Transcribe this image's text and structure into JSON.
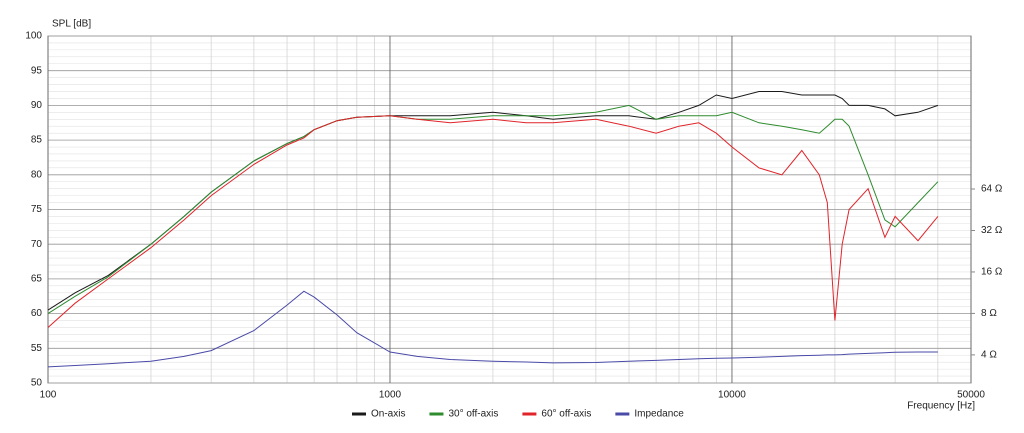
{
  "chart_data": {
    "type": "line",
    "y_label": "SPL [dB]",
    "x_label": "Frequency [Hz]",
    "x": [
      100,
      120,
      150,
      200,
      250,
      300,
      400,
      500,
      560,
      600,
      700,
      800,
      1000,
      1200,
      1500,
      2000,
      2500,
      3000,
      4000,
      5000,
      6000,
      7000,
      8000,
      9000,
      10000,
      12000,
      14000,
      16000,
      18000,
      19000,
      20000,
      21000,
      22000,
      25000,
      28000,
      30000,
      35000,
      40000
    ],
    "xlim": [
      100,
      50000
    ],
    "xlog": true,
    "xticks": [
      100,
      1000,
      10000,
      50000
    ],
    "ylim": [
      50,
      100
    ],
    "yticks": [
      50,
      55,
      60,
      65,
      70,
      75,
      80,
      85,
      90,
      95,
      100
    ],
    "y2lim": [
      2.5,
      826
    ],
    "y2log": true,
    "y2ticks": [
      {
        "value": 4,
        "label": "4 Ω"
      },
      {
        "value": 8,
        "label": "8 Ω"
      },
      {
        "value": 16,
        "label": "16 Ω"
      },
      {
        "value": 32,
        "label": "32 Ω"
      },
      {
        "value": 64,
        "label": "64 Ω"
      }
    ],
    "grid": true,
    "legend": "bottom",
    "series": [
      {
        "name": "On-axis",
        "color": "#1a1a1a",
        "values": [
          60.5,
          63,
          65.5,
          70,
          74,
          77.5,
          82,
          84.5,
          85.5,
          86.5,
          87.8,
          88.3,
          88.5,
          88.5,
          88.5,
          89,
          88.5,
          88,
          88.5,
          88.5,
          88,
          89,
          90,
          91.5,
          91,
          92,
          92,
          91.5,
          91.5,
          91.5,
          91.5,
          91,
          90,
          90,
          89.5,
          88.5,
          89,
          90
        ]
      },
      {
        "name": "30° off-axis",
        "color": "#2e8b2e",
        "values": [
          60,
          62.5,
          65.3,
          70,
          74,
          77.5,
          82,
          84.5,
          85.5,
          86.5,
          87.8,
          88.3,
          88.5,
          88,
          88,
          88.5,
          88.5,
          88.5,
          89,
          90,
          88,
          88.5,
          88.5,
          88.5,
          89,
          87.5,
          87,
          86.5,
          86,
          87,
          88,
          88,
          87,
          80,
          73.5,
          72.5,
          76,
          79
        ]
      },
      {
        "name": "60° off-axis",
        "color": "#e0242a",
        "values": [
          58,
          61.5,
          65,
          69.5,
          73.5,
          77,
          81.5,
          84.3,
          85.3,
          86.5,
          87.8,
          88.3,
          88.5,
          88,
          87.5,
          88,
          87.5,
          87.5,
          88,
          87,
          86,
          87,
          87.5,
          86,
          84,
          81,
          80,
          83.5,
          80,
          76,
          59,
          70,
          75,
          78,
          71,
          74,
          70.5,
          74
        ]
      },
      {
        "name": "Impedance",
        "color": "#4a4aa8",
        "axis": "y2",
        "values": [
          3.27,
          3.35,
          3.45,
          3.6,
          3.9,
          4.3,
          6.0,
          9.2,
          11.6,
          10.5,
          7.8,
          5.8,
          4.2,
          3.9,
          3.7,
          3.6,
          3.55,
          3.5,
          3.52,
          3.6,
          3.65,
          3.7,
          3.75,
          3.78,
          3.8,
          3.85,
          3.9,
          3.95,
          3.98,
          4.0,
          4.0,
          4.02,
          4.05,
          4.1,
          4.15,
          4.18,
          4.2,
          4.2
        ]
      }
    ]
  }
}
